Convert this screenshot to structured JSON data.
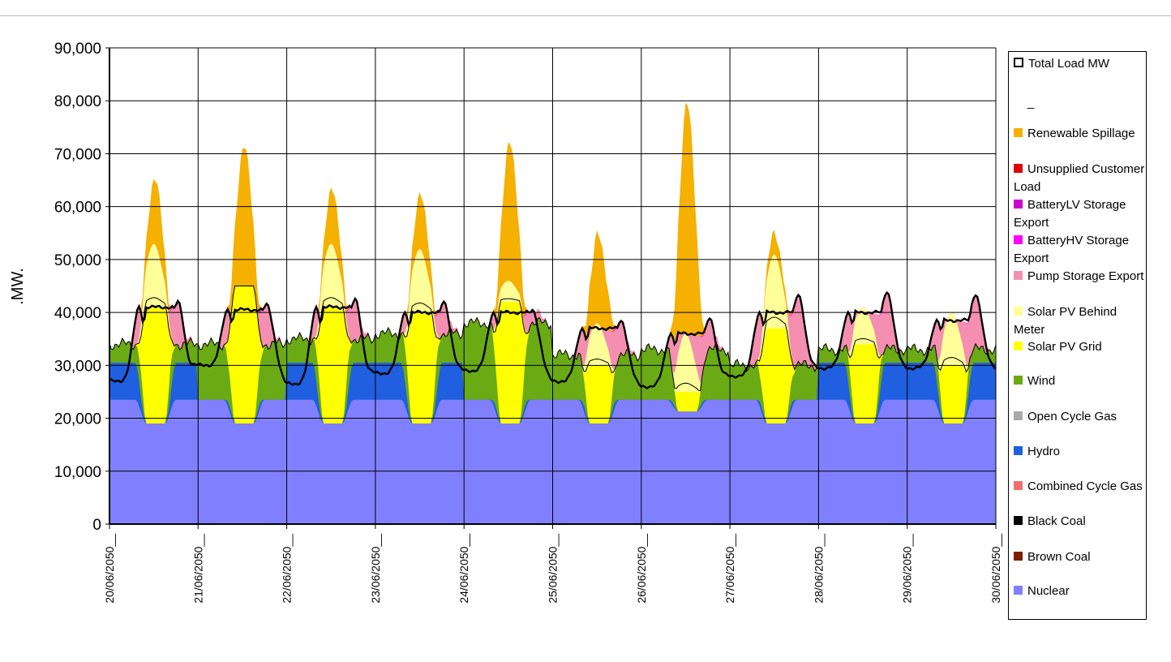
{
  "chart_data": {
    "type": "area",
    "title": "",
    "ylabel": ".MW.",
    "xlabel": "",
    "ylim": [
      0,
      90000
    ],
    "yticks": [
      "0",
      "10,000",
      "20,000",
      "30,000",
      "40,000",
      "50,000",
      "60,000",
      "70,000",
      "80,000",
      "90,000"
    ],
    "ytick_values": [
      0,
      10000,
      20000,
      30000,
      40000,
      50000,
      60000,
      70000,
      80000,
      90000
    ],
    "xtick_labels": [
      "20/06/2050__",
      "21/06/2050__",
      "22/06/2050__",
      "23/06/2050__",
      "24/06/2050__",
      "25/06/2050__",
      "26/06/2050__",
      "27/06/2050__",
      "28/06/2050__",
      "29/06/2050__",
      "30/06/2050__"
    ],
    "x_range_days": [
      0,
      10
    ],
    "grid": true,
    "legend_position": "right",
    "colors": {
      "nuclear": "#8080ff",
      "hydro": "#1f5fe0",
      "wind": "#6aaa14",
      "solar_grid": "#ffff00",
      "solar_btm": "#ffff99",
      "pump": "#f48fb1",
      "battery_hv": "#ff00ff",
      "battery_lv": "#cc00cc",
      "spill": "#f5b000",
      "load": "#000000"
    },
    "legend": [
      {
        "label": "Total Load MW",
        "color": "#ffffff",
        "outline": true
      },
      {
        "label": "_",
        "color": "none"
      },
      {
        "label": "Renewable Spillage",
        "color": "#f5b000"
      },
      {
        "label": "Unsupplied Customer Load",
        "color": "#e00000"
      },
      {
        "label": "BatteryLV Storage Export",
        "color": "#cc00cc"
      },
      {
        "label": "BatteryHV Storage Export",
        "color": "#ff00ff"
      },
      {
        "label": "Pump Storage Export",
        "color": "#f48fb1"
      },
      {
        "label": "Solar PV Behind Meter",
        "color": "#ffff99"
      },
      {
        "label": "Solar PV Grid",
        "color": "#ffff00"
      },
      {
        "label": "Wind",
        "color": "#6aaa14"
      },
      {
        "label": "Open Cycle Gas",
        "color": "#aaaaaa"
      },
      {
        "label": "Hydro",
        "color": "#1f5fe0"
      },
      {
        "label": "Combined Cycle Gas",
        "color": "#f07070"
      },
      {
        "label": "Black Coal",
        "color": "#000000"
      },
      {
        "label": "Brown Coal",
        "color": "#7a1f00"
      },
      {
        "label": "Nuclear",
        "color": "#8080ff"
      }
    ],
    "nuclear_mw": 23500,
    "days": [
      {
        "date": "20/06/2050",
        "night_load": 27000,
        "peak_load": 41000,
        "evening_peak": 42000,
        "hydro_top": 30500,
        "wind_top": 34000,
        "solar_grid_top": 41000,
        "solar_btm_top": 53000,
        "spill_top": 65000
      },
      {
        "date": "21/06/2050",
        "night_load": 30000,
        "peak_load": 40500,
        "evening_peak": 41500,
        "hydro_top": 23500,
        "wind_top": 34000,
        "solar_grid_top": 45000,
        "solar_btm_top": 45000,
        "spill_top": 71000
      },
      {
        "date": "22/06/2050",
        "night_load": 26500,
        "peak_load": 41000,
        "evening_peak": 42500,
        "hydro_top": 30500,
        "wind_top": 35000,
        "solar_grid_top": 41000,
        "solar_btm_top": 53000,
        "spill_top": 63000
      },
      {
        "date": "23/06/2050",
        "night_load": 28500,
        "peak_load": 40000,
        "evening_peak": 42000,
        "hydro_top": 30500,
        "wind_top": 36000,
        "solar_grid_top": 40000,
        "solar_btm_top": 52000,
        "spill_top": 62000
      },
      {
        "date": "24/06/2050",
        "night_load": 29000,
        "peak_load": 40000,
        "evening_peak": 40500,
        "hydro_top": 23500,
        "wind_top": 38000,
        "solar_grid_top": 42000,
        "solar_btm_top": 46000,
        "spill_top": 72000
      },
      {
        "date": "25/06/2050",
        "night_load": 27000,
        "peak_load": 37000,
        "evening_peak": 38500,
        "hydro_top": 23500,
        "wind_top": 32000,
        "solar_grid_top": 30000,
        "solar_btm_top": 38000,
        "spill_top": 55000
      },
      {
        "date": "26/06/2050",
        "night_load": 26000,
        "peak_load": 36000,
        "evening_peak": 39000,
        "hydro_top": 23500,
        "wind_top": 33000,
        "solar_grid_top": 25000,
        "solar_btm_top": 36000,
        "spill_top": 80000
      },
      {
        "date": "27/06/2050",
        "night_load": 28000,
        "peak_load": 40000,
        "evening_peak": 43500,
        "hydro_top": 23500,
        "wind_top": 30000,
        "solar_grid_top": 37000,
        "solar_btm_top": 51000,
        "spill_top": 55000
      },
      {
        "date": "28/06/2050",
        "night_load": 29500,
        "peak_load": 40000,
        "evening_peak": 44000,
        "hydro_top": 30500,
        "wind_top": 33000,
        "solar_grid_top": 34000,
        "solar_btm_top": 41000,
        "spill_top": 41000
      },
      {
        "date": "29/06/2050",
        "night_load": 29500,
        "peak_load": 38500,
        "evening_peak": 43500,
        "hydro_top": 30500,
        "wind_top": 33000,
        "solar_grid_top": 30000,
        "solar_btm_top": 40000,
        "spill_top": 40000
      }
    ]
  }
}
